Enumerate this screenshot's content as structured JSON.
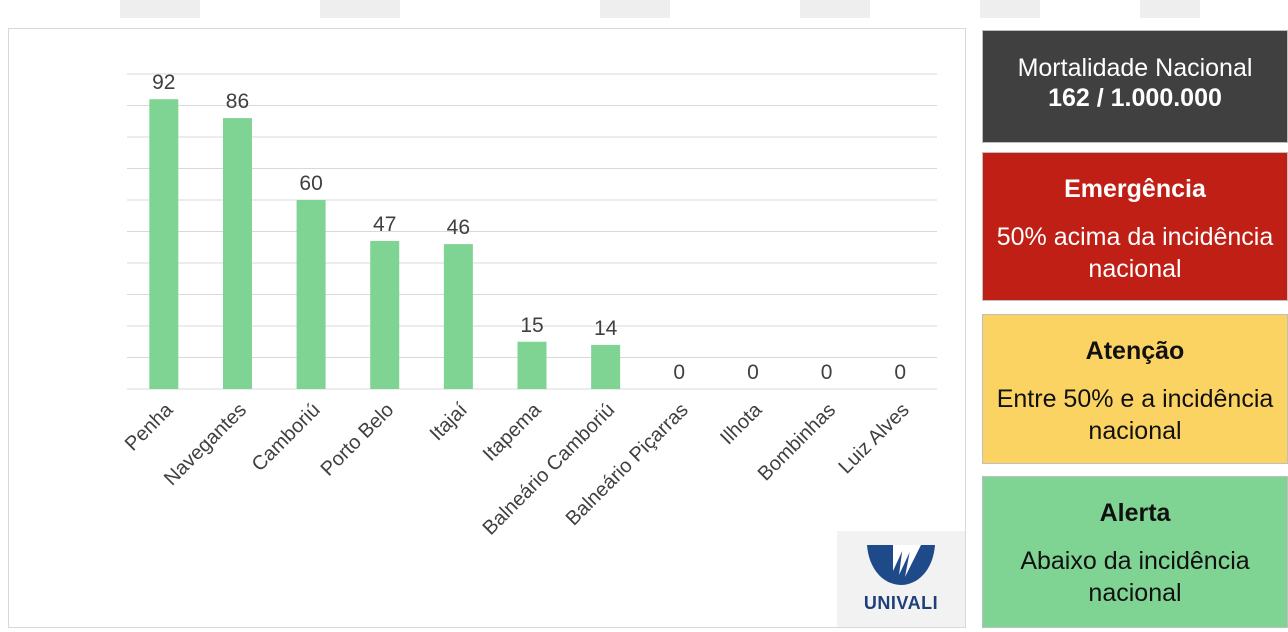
{
  "chart_data": {
    "type": "bar",
    "categories": [
      "Penha",
      "Navegantes",
      "Camboriú",
      "Porto Belo",
      "Itajaí",
      "Itapema",
      "Balneário Camboriú",
      "Balneário Piçarras",
      "Ilhota",
      "Bombinhas",
      "Luiz Alves"
    ],
    "values": [
      92,
      86,
      60,
      47,
      46,
      15,
      14,
      0,
      0,
      0,
      0
    ],
    "value_labels": [
      "92",
      "86",
      "60",
      "47",
      "46",
      "15",
      "14",
      "0",
      "0",
      "0",
      "0"
    ],
    "title": "",
    "xlabel": "",
    "ylabel": "",
    "ylim": [
      0,
      100
    ],
    "grid": true,
    "bar_color": "#7fd393"
  },
  "national": {
    "title": "Mortalidade Nacional",
    "value": "162 / 1.000.000",
    "color": "#404040"
  },
  "legend_boxes": [
    {
      "title": "Emergência",
      "description": "50% acima da incidência nacional",
      "color": "#c01f16"
    },
    {
      "title": "Atenção",
      "description": "Entre 50% e a incidência nacional",
      "color": "#fbd362"
    },
    {
      "title": "Alerta",
      "description": "Abaixo da incidência nacional",
      "color": "#7fd393"
    }
  ],
  "logo": {
    "text": "UNIVALI",
    "icon": "univali-logo-icon"
  }
}
